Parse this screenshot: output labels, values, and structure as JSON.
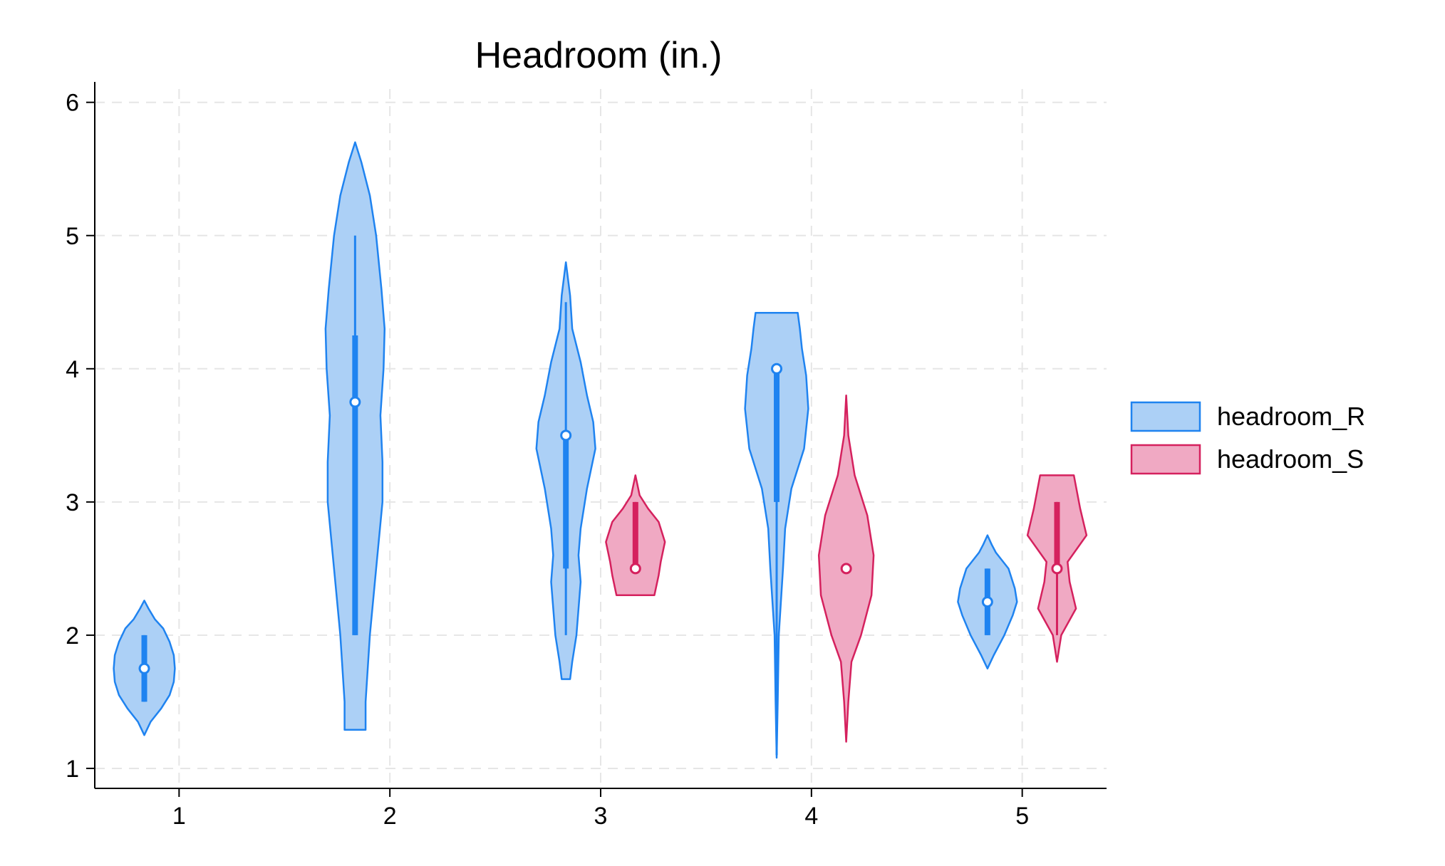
{
  "chart_data": {
    "type": "violin",
    "title": "Headroom (in.)",
    "xlabel": "",
    "ylabel": "",
    "categories": [
      1,
      2,
      3,
      4,
      5
    ],
    "xlim": [
      0.6,
      5.4
    ],
    "ylim": [
      0.85,
      6.1
    ],
    "yticks": [
      1,
      2,
      3,
      4,
      5,
      6
    ],
    "grid": true,
    "legend_position": "right",
    "series": [
      {
        "name": "headroom_R",
        "fill": "#acd0f6",
        "stroke": "#1f83f0",
        "violins": [
          {
            "category": 1,
            "median": 1.75,
            "q1": 1.5,
            "q3": 2.0,
            "whisker_low": 1.5,
            "whisker_high": 2.0,
            "profile": [
              [
                1.25,
                0.0
              ],
              [
                1.35,
                0.03
              ],
              [
                1.45,
                0.08
              ],
              [
                1.55,
                0.12
              ],
              [
                1.65,
                0.14
              ],
              [
                1.75,
                0.145
              ],
              [
                1.85,
                0.14
              ],
              [
                1.95,
                0.12
              ],
              [
                2.05,
                0.09
              ],
              [
                2.12,
                0.05
              ],
              [
                2.2,
                0.02
              ],
              [
                2.26,
                0.0
              ]
            ]
          },
          {
            "category": 2,
            "median": 3.75,
            "q1": 2.0,
            "q3": 4.25,
            "whisker_low": 2.0,
            "whisker_high": 5.0,
            "profile": [
              [
                1.29,
                0.05
              ],
              [
                1.5,
                0.05
              ],
              [
                2.0,
                0.07
              ],
              [
                2.5,
                0.1
              ],
              [
                3.0,
                0.13
              ],
              [
                3.3,
                0.13
              ],
              [
                3.65,
                0.12
              ],
              [
                4.0,
                0.135
              ],
              [
                4.3,
                0.14
              ],
              [
                4.6,
                0.125
              ],
              [
                5.0,
                0.1
              ],
              [
                5.3,
                0.07
              ],
              [
                5.55,
                0.03
              ],
              [
                5.7,
                0.0
              ]
            ]
          },
          {
            "category": 3,
            "median": 3.5,
            "q1": 2.5,
            "q3": 3.5,
            "whisker_low": 2.0,
            "whisker_high": 4.5,
            "profile": [
              [
                1.67,
                0.02
              ],
              [
                1.8,
                0.03
              ],
              [
                2.0,
                0.05
              ],
              [
                2.4,
                0.07
              ],
              [
                2.6,
                0.06
              ],
              [
                2.8,
                0.07
              ],
              [
                3.1,
                0.1
              ],
              [
                3.4,
                0.14
              ],
              [
                3.6,
                0.13
              ],
              [
                3.8,
                0.1
              ],
              [
                4.05,
                0.07
              ],
              [
                4.3,
                0.03
              ],
              [
                4.55,
                0.02
              ],
              [
                4.8,
                0.0
              ]
            ]
          },
          {
            "category": 4,
            "median": 4.0,
            "q1": 3.0,
            "q3": 4.0,
            "whisker_low": 1.1,
            "whisker_high": 4.0,
            "profile": [
              [
                1.08,
                0.0
              ],
              [
                1.5,
                0.005
              ],
              [
                2.0,
                0.01
              ],
              [
                2.5,
                0.03
              ],
              [
                2.8,
                0.04
              ],
              [
                3.1,
                0.07
              ],
              [
                3.4,
                0.13
              ],
              [
                3.7,
                0.15
              ],
              [
                3.95,
                0.14
              ],
              [
                4.15,
                0.12
              ],
              [
                4.3,
                0.11
              ],
              [
                4.42,
                0.1
              ]
            ]
          },
          {
            "category": 5,
            "median": 2.25,
            "q1": 2.0,
            "q3": 2.5,
            "whisker_low": 2.0,
            "whisker_high": 2.5,
            "profile": [
              [
                1.75,
                0.0
              ],
              [
                1.85,
                0.03
              ],
              [
                2.0,
                0.08
              ],
              [
                2.15,
                0.12
              ],
              [
                2.25,
                0.14
              ],
              [
                2.35,
                0.13
              ],
              [
                2.5,
                0.1
              ],
              [
                2.62,
                0.04
              ],
              [
                2.68,
                0.02
              ],
              [
                2.75,
                0.0
              ]
            ]
          }
        ]
      },
      {
        "name": "headroom_S",
        "fill": "#f0a9c3",
        "stroke": "#d5215e",
        "violins": [
          {
            "category": 3,
            "median": 2.5,
            "q1": 2.5,
            "q3": 3.0,
            "whisker_low": 2.5,
            "whisker_high": 3.0,
            "profile": [
              [
                2.3,
                0.09
              ],
              [
                2.45,
                0.11
              ],
              [
                2.55,
                0.12
              ],
              [
                2.7,
                0.14
              ],
              [
                2.85,
                0.11
              ],
              [
                2.95,
                0.06
              ],
              [
                3.05,
                0.02
              ],
              [
                3.2,
                0.0
              ]
            ]
          },
          {
            "category": 4,
            "median": 2.5,
            "q1": 2.5,
            "q3": 2.5,
            "whisker_low": 2.5,
            "whisker_high": 2.5,
            "profile": [
              [
                1.2,
                0.0
              ],
              [
                1.5,
                0.01
              ],
              [
                1.8,
                0.025
              ],
              [
                2.0,
                0.07
              ],
              [
                2.3,
                0.12
              ],
              [
                2.6,
                0.13
              ],
              [
                2.9,
                0.1
              ],
              [
                3.2,
                0.04
              ],
              [
                3.5,
                0.01
              ],
              [
                3.8,
                0.0
              ]
            ]
          },
          {
            "category": 5,
            "median": 2.5,
            "q1": 2.5,
            "q3": 3.0,
            "whisker_low": 2.0,
            "whisker_high": 3.0,
            "profile": [
              [
                1.8,
                0.0
              ],
              [
                2.0,
                0.02
              ],
              [
                2.2,
                0.09
              ],
              [
                2.4,
                0.06
              ],
              [
                2.55,
                0.05
              ],
              [
                2.75,
                0.14
              ],
              [
                2.95,
                0.11
              ],
              [
                3.2,
                0.08
              ]
            ]
          }
        ]
      }
    ]
  }
}
